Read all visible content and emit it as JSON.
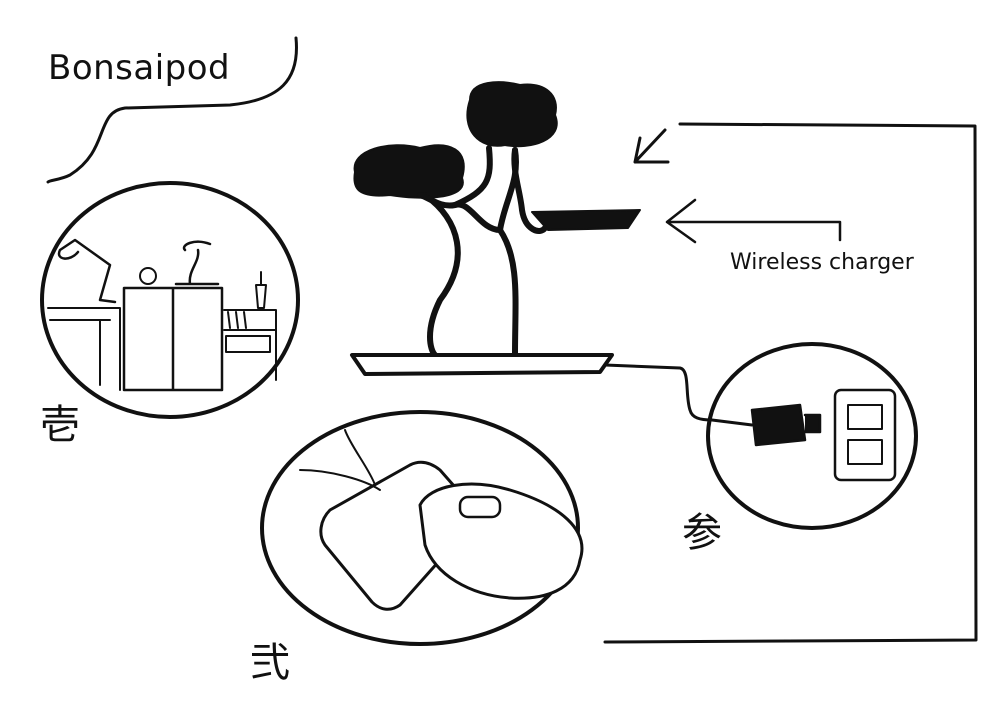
{
  "title": "Bonsaipod",
  "charger_label": "Wireless charger",
  "steps": [
    "壱",
    "弐",
    "参"
  ],
  "colors": {
    "ink": "#111111",
    "paper": "#ffffff"
  },
  "icons": [
    "bonsai-tree-icon",
    "desk-lamp-icon",
    "alarm-clock-icon",
    "cabinet-icon",
    "charging-pad-icon",
    "earbuds-case-icon",
    "usb-plug-icon",
    "wall-outlet-icon",
    "arrow-left-icon"
  ]
}
